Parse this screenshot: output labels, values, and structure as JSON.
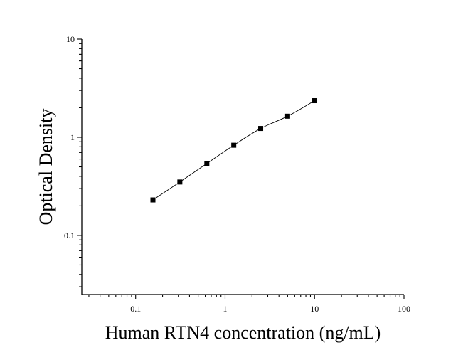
{
  "chart_data": {
    "type": "scatter",
    "title": "",
    "xlabel": "Human RTN4 concentration (ng/mL)",
    "ylabel": "Optical Density",
    "x_scale": "log",
    "y_scale": "log",
    "xlim": [
      0.025,
      100
    ],
    "ylim": [
      0.025,
      10
    ],
    "x_ticks": [
      {
        "value": 0.1,
        "label": "0.1"
      },
      {
        "value": 1,
        "label": "1"
      },
      {
        "value": 10,
        "label": "10"
      },
      {
        "value": 100,
        "label": "100"
      }
    ],
    "y_ticks": [
      {
        "value": 0.1,
        "label": "0.1"
      },
      {
        "value": 1,
        "label": "1"
      },
      {
        "value": 10,
        "label": "10"
      }
    ],
    "grid": false,
    "series": [
      {
        "marker": "square",
        "color": "#000000",
        "fit_line": true,
        "x": [
          0.156,
          0.312,
          0.625,
          1.25,
          2.5,
          5,
          10
        ],
        "y": [
          0.23,
          0.35,
          0.54,
          0.83,
          1.23,
          1.64,
          2.36
        ]
      }
    ]
  }
}
